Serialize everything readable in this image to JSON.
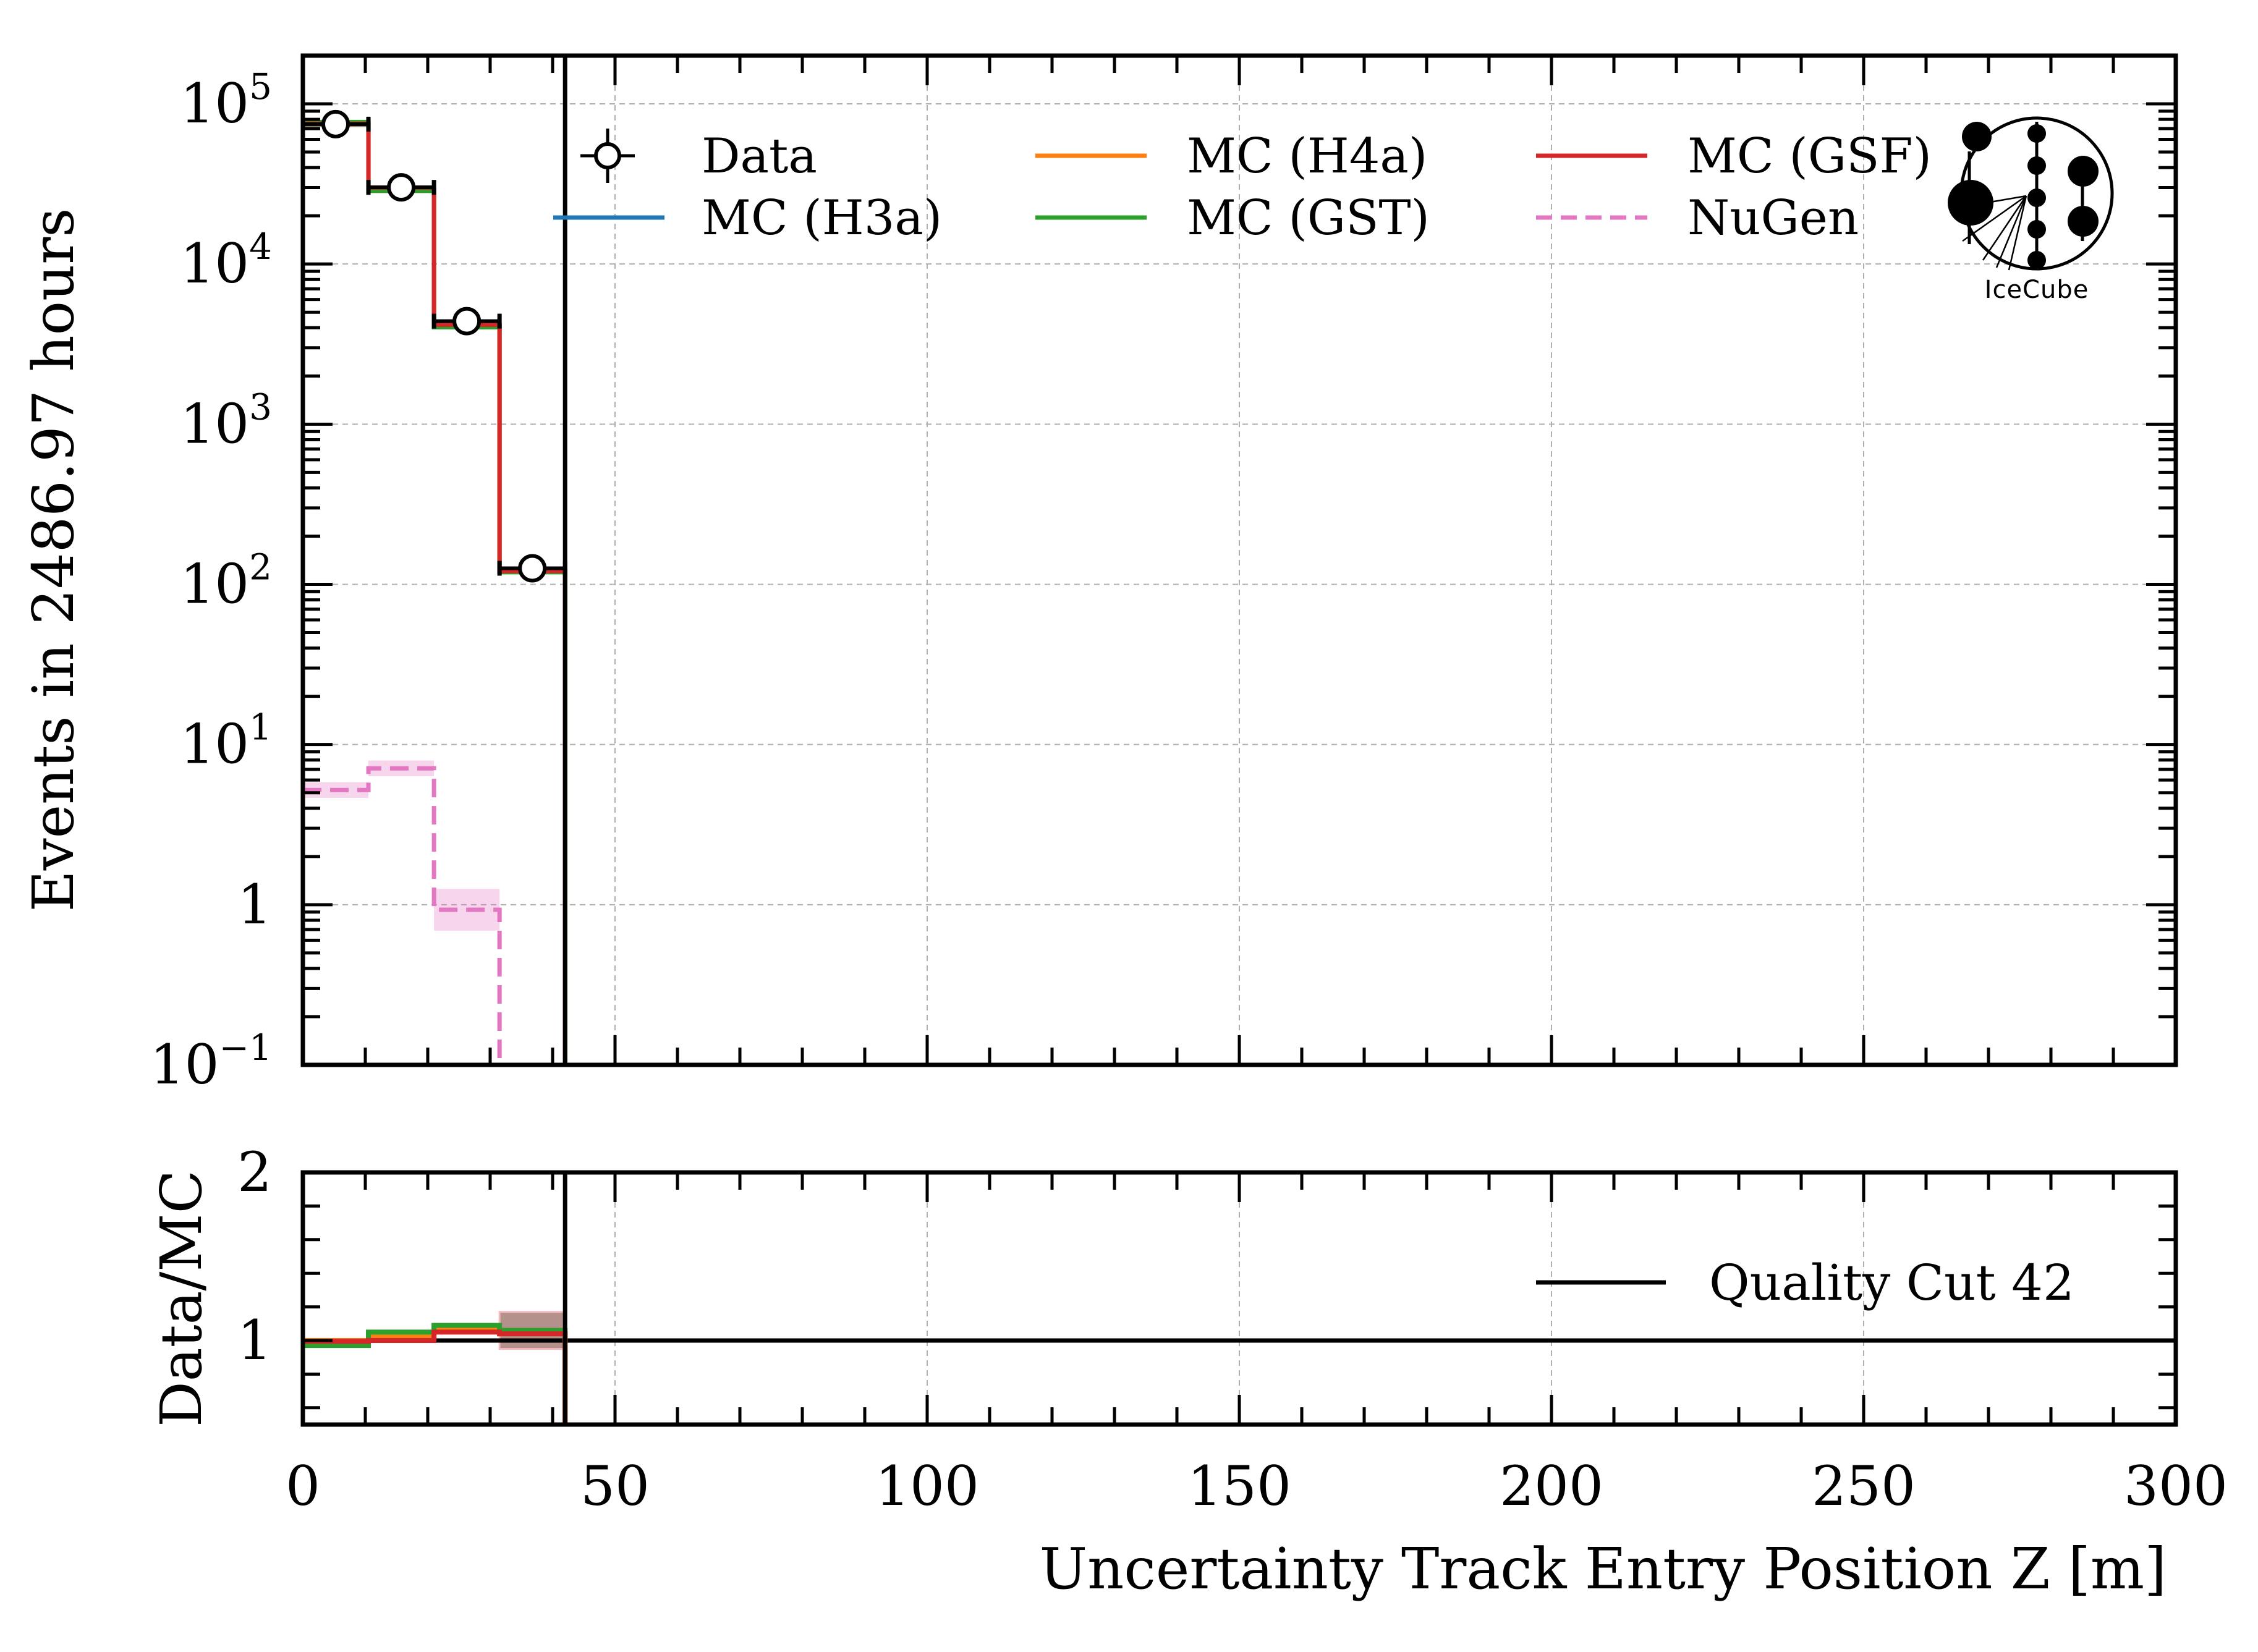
{
  "chart_data": [
    {
      "panel": "main",
      "type": "histogram-step",
      "title": "",
      "xlabel": "Uncertainty Track Entry Position Z [m]",
      "ylabel": "Events in 2486.97 hours",
      "xlim": [
        0,
        300
      ],
      "ylim": [
        0.1,
        200000
      ],
      "yscale": "log",
      "grid": true,
      "x_ticks": [
        0,
        50,
        100,
        150,
        200,
        250,
        300
      ],
      "x_tick_labels": [
        "0",
        "50",
        "100",
        "150",
        "200",
        "250",
        "300"
      ],
      "y_ticks": [
        0.1,
        1,
        10,
        100,
        1000,
        10000,
        100000
      ],
      "y_tick_labels": [
        {
          "base": "10",
          "exp": "−1"
        },
        {
          "base": "1",
          "exp": ""
        },
        {
          "base": "10",
          "exp": "1"
        },
        {
          "base": "10",
          "exp": "2"
        },
        {
          "base": "10",
          "exp": "3"
        },
        {
          "base": "10",
          "exp": "4"
        },
        {
          "base": "10",
          "exp": "5"
        }
      ],
      "bin_edges": [
        0,
        10.5,
        21,
        31.5,
        42
      ],
      "series": [
        {
          "name": "Data",
          "style": "points",
          "color": "#000000",
          "values": [
            74700,
            30100,
            4400,
            126
          ]
        },
        {
          "name": "MC (H3a)",
          "style": "step",
          "color": "#1f77b4",
          "values": [
            74000,
            29000,
            4150,
            122
          ]
        },
        {
          "name": "MC (H4a)",
          "style": "step",
          "color": "#ff7f0e",
          "values": [
            74500,
            29200,
            4100,
            121
          ]
        },
        {
          "name": "MC (GST)",
          "style": "step",
          "color": "#2ca02c",
          "values": [
            77000,
            28600,
            4030,
            119
          ]
        },
        {
          "name": "MC (GSF)",
          "style": "step",
          "color": "#d62728",
          "values": [
            75000,
            30000,
            4180,
            121
          ]
        },
        {
          "name": "NuGen",
          "style": "dashed-step",
          "color": "#e377c2",
          "values": [
            5.2,
            7.1,
            0.93,
            0.0
          ]
        }
      ],
      "vertical_line": {
        "name": "Quality Cut 42",
        "x": 42,
        "color": "#000000"
      },
      "legend": {
        "placement": "top",
        "columns": 3,
        "entries": [
          "Data",
          "MC (H3a)",
          "MC (H4a)",
          "MC (GST)",
          "MC (GSF)",
          "NuGen"
        ]
      },
      "logo_text": "IceCube"
    },
    {
      "panel": "ratio",
      "type": "histogram-step",
      "ylabel": "Data/MC",
      "xlabel": "Uncertainty Track Entry Position Z [m]",
      "xlim": [
        0,
        300
      ],
      "ylim": [
        0.5,
        2
      ],
      "grid": true,
      "y_ticks": [
        1,
        2
      ],
      "y_tick_labels": [
        "1",
        "2"
      ],
      "bin_edges": [
        0,
        10.5,
        21,
        31.5,
        42
      ],
      "series": [
        {
          "name": "MC (H3a)",
          "color": "#1f77b4",
          "values": [
            1.0,
            1.03,
            1.06,
            1.04
          ]
        },
        {
          "name": "MC (H4a)",
          "color": "#ff7f0e",
          "values": [
            1.0,
            1.03,
            1.07,
            1.04
          ]
        },
        {
          "name": "MC (GST)",
          "color": "#2ca02c",
          "values": [
            0.97,
            1.05,
            1.09,
            1.06
          ]
        },
        {
          "name": "MC (GSF)",
          "color": "#d62728",
          "values": [
            0.995,
            1.0,
            1.05,
            1.04
          ]
        }
      ],
      "uncertainty_band": {
        "color": "#8c564b",
        "bins": [
          3
        ],
        "low": 0.95,
        "high": 1.17
      },
      "reference_line": 1,
      "vertical_line": {
        "name": "Quality Cut 42",
        "x": 42,
        "color": "#000000"
      },
      "legend": {
        "placement": "right",
        "entries": [
          "Quality Cut 42"
        ]
      }
    }
  ]
}
